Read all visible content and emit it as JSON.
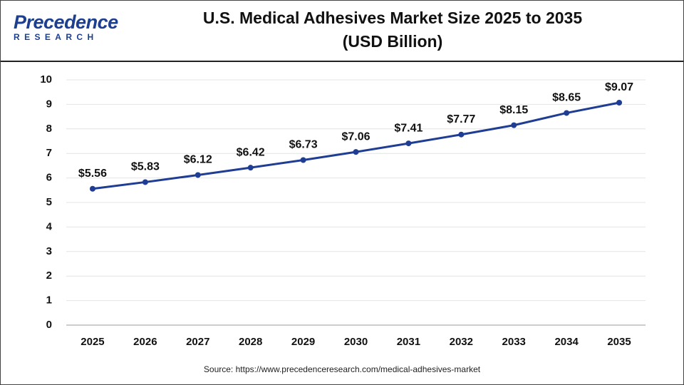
{
  "logo": {
    "name": "Precedence",
    "tagline": "RESEARCH"
  },
  "source": "Source: https://www.precedenceresearch.com/medical-adhesives-market",
  "chart_data": {
    "type": "line",
    "title": "U.S. Medical Adhesives Market Size 2025 to 2035",
    "subtitle": "(USD Billion)",
    "categories": [
      "2025",
      "2026",
      "2027",
      "2028",
      "2029",
      "2030",
      "2031",
      "2032",
      "2033",
      "2034",
      "2035"
    ],
    "values": [
      5.56,
      5.83,
      6.12,
      6.42,
      6.73,
      7.06,
      7.41,
      7.77,
      8.15,
      8.65,
      9.07
    ],
    "value_labels": [
      "$5.56",
      "$5.83",
      "$6.12",
      "$6.42",
      "$6.73",
      "$7.06",
      "$7.41",
      "$7.77",
      "$8.15",
      "$8.65",
      "$9.07"
    ],
    "color": "#1f3d93",
    "ylim": [
      0,
      10
    ],
    "yticks": [
      0,
      1,
      2,
      3,
      4,
      5,
      6,
      7,
      8,
      9,
      10
    ],
    "grid": true
  }
}
